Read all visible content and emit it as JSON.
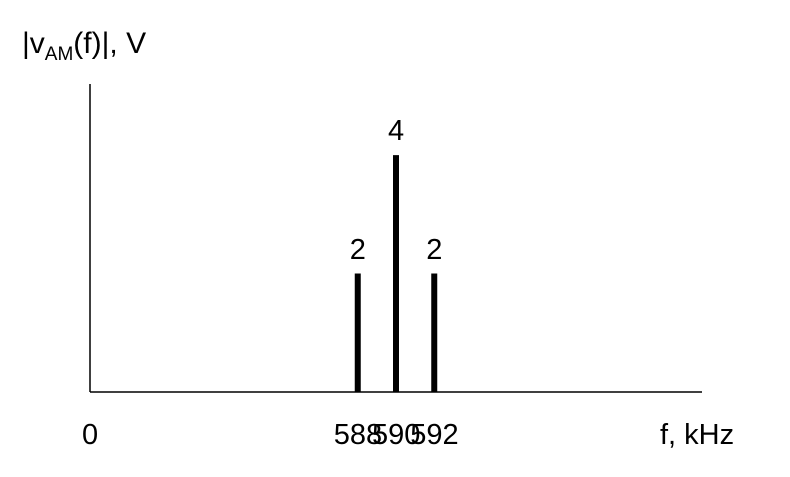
{
  "chart_data": {
    "type": "bar",
    "ylabel": {
      "pre": "|v",
      "sub": "AM",
      "post": "(f)|, V"
    },
    "xlabel": "f, kHz",
    "origin_label": "0",
    "x_ticks": [
      "588",
      "590",
      "592"
    ],
    "x": [
      588,
      590,
      592
    ],
    "values": [
      2,
      4,
      2
    ],
    "data_labels": [
      "2",
      "4",
      "2"
    ],
    "xlim": [
      574,
      606
    ],
    "ylim": [
      0,
      5.2
    ],
    "grid": false,
    "legend": "none",
    "bar_color": "#000000"
  }
}
